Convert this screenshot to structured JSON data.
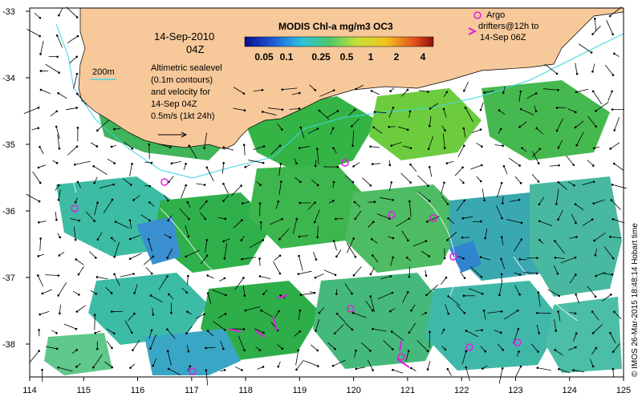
{
  "map": {
    "date_line1": "14-Sep-2010",
    "date_line2": "04Z",
    "legend_title": "MODIS Chl-a mg/m3 OC3",
    "colorbar_ticks": [
      "0.05",
      "0.1",
      "0.25",
      "0.5",
      "1",
      "2",
      "4"
    ],
    "isobath_label": "200m",
    "altimetry_text": [
      "Altimetric sealevel",
      "(0.1m contours)",
      "and velocity for",
      "14-Sep 04Z",
      "0.5m/s (1kt 24h)"
    ],
    "argo_text": [
      "Argo",
      "drifters@12h to",
      "14-Sep 06Z"
    ],
    "side_credit": "© IMOS 26-Mar-2015 18:48:14 Hobart time",
    "x_ticks": [
      "114",
      "115",
      "116",
      "117",
      "118",
      "119",
      "120",
      "121",
      "122",
      "123",
      "124",
      "125"
    ],
    "y_ticks": [
      "-33",
      "-34",
      "-35",
      "-36",
      "-37",
      "-38"
    ],
    "colors": {
      "land": "#f6c89a",
      "chl_low": "#3bbfae",
      "chl_mid": "#39b54a",
      "chl_high": "#7fd13b",
      "argo": "#e01ee0",
      "isobath": "#3fd6e8"
    }
  }
}
